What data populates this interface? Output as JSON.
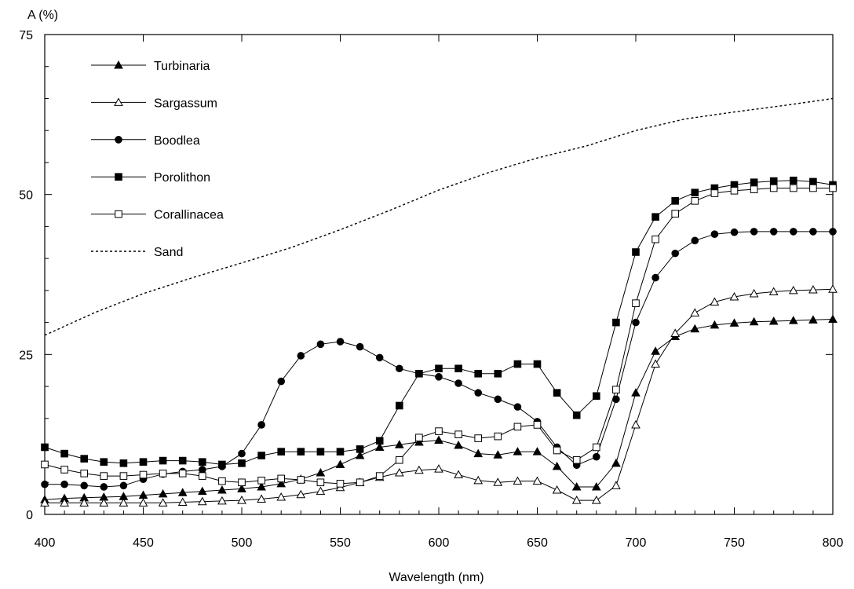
{
  "chart_data": {
    "type": "line",
    "title": "",
    "ylabel": "A (%)",
    "xlabel": "Wavelength (nm)",
    "xlim": [
      400,
      800
    ],
    "ylim": [
      0,
      75
    ],
    "x_ticks": [
      400,
      450,
      500,
      550,
      600,
      650,
      700,
      750,
      800
    ],
    "y_ticks": [
      0,
      25,
      50,
      75
    ],
    "grid": false,
    "legend_position": "top-left",
    "series": [
      {
        "name": "Turbinaria",
        "marker": "filled-triangle",
        "line": "solid",
        "x": [
          400,
          410,
          420,
          430,
          440,
          450,
          460,
          470,
          480,
          490,
          500,
          510,
          520,
          530,
          540,
          550,
          560,
          570,
          580,
          590,
          600,
          610,
          620,
          630,
          640,
          650,
          660,
          670,
          680,
          690,
          700,
          710,
          720,
          730,
          740,
          750,
          760,
          770,
          780,
          790,
          800
        ],
        "y": [
          2.3,
          2.5,
          2.6,
          2.7,
          2.8,
          3.0,
          3.2,
          3.4,
          3.6,
          3.8,
          4.0,
          4.3,
          4.8,
          5.5,
          6.5,
          7.8,
          9.2,
          10.5,
          10.9,
          11.3,
          11.6,
          10.8,
          9.5,
          9.3,
          9.8,
          9.8,
          7.5,
          4.3,
          4.3,
          8.0,
          19.0,
          25.5,
          27.8,
          29.0,
          29.6,
          29.9,
          30.1,
          30.2,
          30.3,
          30.4,
          30.5
        ]
      },
      {
        "name": "Sargassum",
        "marker": "open-triangle",
        "line": "solid",
        "x": [
          400,
          410,
          420,
          430,
          440,
          450,
          460,
          470,
          480,
          490,
          500,
          510,
          520,
          530,
          540,
          550,
          560,
          570,
          580,
          590,
          600,
          610,
          620,
          630,
          640,
          650,
          660,
          670,
          680,
          690,
          700,
          710,
          720,
          730,
          740,
          750,
          760,
          770,
          780,
          790,
          800
        ],
        "y": [
          1.8,
          1.8,
          1.8,
          1.8,
          1.8,
          1.8,
          1.8,
          1.9,
          2.0,
          2.1,
          2.2,
          2.4,
          2.7,
          3.1,
          3.6,
          4.2,
          5.0,
          5.8,
          6.5,
          6.9,
          7.1,
          6.2,
          5.3,
          5.0,
          5.2,
          5.2,
          3.8,
          2.2,
          2.2,
          4.5,
          14.0,
          23.5,
          28.3,
          31.5,
          33.2,
          34.0,
          34.5,
          34.8,
          35.0,
          35.1,
          35.2
        ]
      },
      {
        "name": "Boodlea",
        "marker": "filled-circle",
        "line": "solid",
        "x": [
          400,
          410,
          420,
          430,
          440,
          450,
          460,
          470,
          480,
          490,
          500,
          510,
          520,
          530,
          540,
          550,
          560,
          570,
          580,
          590,
          600,
          610,
          620,
          630,
          640,
          650,
          660,
          670,
          680,
          690,
          700,
          710,
          720,
          730,
          740,
          750,
          760,
          770,
          780,
          790,
          800
        ],
        "y": [
          4.7,
          4.7,
          4.5,
          4.3,
          4.5,
          5.5,
          6.3,
          6.7,
          7.0,
          7.5,
          9.5,
          14.0,
          20.8,
          24.8,
          26.6,
          27.0,
          26.2,
          24.5,
          22.8,
          22.0,
          21.5,
          20.5,
          19.0,
          18.0,
          16.8,
          14.5,
          10.5,
          7.7,
          9.0,
          18.0,
          30.0,
          37.0,
          40.8,
          42.8,
          43.8,
          44.1,
          44.2,
          44.2,
          44.2,
          44.2,
          44.2
        ]
      },
      {
        "name": "Porolithon",
        "marker": "filled-square",
        "line": "solid",
        "x": [
          400,
          410,
          420,
          430,
          440,
          450,
          460,
          470,
          480,
          490,
          500,
          510,
          520,
          530,
          540,
          550,
          560,
          570,
          580,
          590,
          600,
          610,
          620,
          630,
          640,
          650,
          660,
          670,
          680,
          690,
          700,
          710,
          720,
          730,
          740,
          750,
          760,
          770,
          780,
          790,
          800
        ],
        "y": [
          10.5,
          9.5,
          8.7,
          8.2,
          8.0,
          8.2,
          8.4,
          8.4,
          8.2,
          7.8,
          8.0,
          9.2,
          9.8,
          9.8,
          9.8,
          9.8,
          10.2,
          11.5,
          17.0,
          22.0,
          22.8,
          22.8,
          22.0,
          22.0,
          23.5,
          23.5,
          19.0,
          15.5,
          18.5,
          30.0,
          41.0,
          46.5,
          49.0,
          50.3,
          51.0,
          51.5,
          51.9,
          52.1,
          52.2,
          52.0,
          51.5
        ]
      },
      {
        "name": "Corallinacea",
        "marker": "open-square",
        "line": "solid",
        "x": [
          400,
          410,
          420,
          430,
          440,
          450,
          460,
          470,
          480,
          490,
          500,
          510,
          520,
          530,
          540,
          550,
          560,
          570,
          580,
          590,
          600,
          610,
          620,
          630,
          640,
          650,
          660,
          670,
          680,
          690,
          700,
          710,
          720,
          730,
          740,
          750,
          760,
          770,
          780,
          790,
          800
        ],
        "y": [
          7.8,
          7.0,
          6.4,
          6.0,
          6.0,
          6.2,
          6.4,
          6.4,
          6.0,
          5.2,
          5.0,
          5.3,
          5.6,
          5.4,
          5.0,
          4.8,
          5.0,
          6.0,
          8.5,
          12.0,
          13.0,
          12.5,
          11.9,
          12.2,
          13.7,
          14.0,
          10.0,
          8.5,
          10.5,
          19.5,
          33.0,
          43.0,
          47.0,
          49.0,
          50.2,
          50.6,
          50.8,
          51.0,
          51.0,
          51.0,
          51.0
        ]
      },
      {
        "name": "Sand",
        "marker": "none",
        "line": "dotted",
        "x": [
          400,
          425,
          450,
          475,
          500,
          525,
          550,
          575,
          600,
          625,
          650,
          675,
          700,
          725,
          750,
          775,
          800
        ],
        "y": [
          28.0,
          31.5,
          34.5,
          37.0,
          39.3,
          41.7,
          44.5,
          47.5,
          50.7,
          53.4,
          55.7,
          57.6,
          60.0,
          61.8,
          62.9,
          63.9,
          65.0
        ]
      }
    ]
  }
}
